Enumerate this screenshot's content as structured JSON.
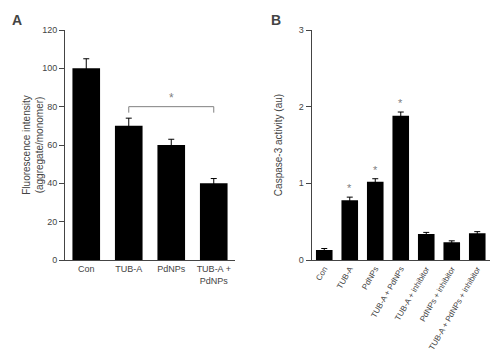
{
  "chart_data": [
    {
      "type": "bar",
      "title": "A",
      "categories": [
        "Con",
        "TUB-A",
        "PdNPs",
        "TUB-A +\nPdNPs"
      ],
      "values": [
        100,
        70,
        60,
        40
      ],
      "errors": [
        5,
        4,
        3,
        2.5
      ],
      "ylabel": "Fluorescence intensity\n(aggregate/monomer)",
      "ylim": [
        0,
        120
      ],
      "yticks": [
        0,
        20,
        40,
        60,
        80,
        100,
        120
      ],
      "color": "#000000",
      "grid": false,
      "annotations": [
        {
          "text": "*",
          "from": "TUB-A",
          "to": "TUB-A +\nPdNPs",
          "y": 80,
          "color": "gray"
        }
      ]
    },
    {
      "type": "bar",
      "title": "B",
      "categories": [
        "Con",
        "TUB-A",
        "PdNPs",
        "TUB-A + PdNPs",
        "TUB-A + inhibitor",
        "PdNPs + inhibitor",
        "TUB-A + PdNPs + inhibitor"
      ],
      "values": [
        0.13,
        0.78,
        1.02,
        1.88,
        0.34,
        0.23,
        0.35
      ],
      "errors": [
        0.02,
        0.04,
        0.04,
        0.05,
        0.02,
        0.02,
        0.02
      ],
      "ylabel": "Caspase-3 activity (au)",
      "ylim": [
        0,
        3
      ],
      "yticks": [
        0,
        1,
        2,
        3
      ],
      "color": "#000000",
      "grid": false,
      "annotations": [
        {
          "text": "*",
          "category": "TUB-A",
          "color": "gray"
        },
        {
          "text": "*",
          "category": "PdNPs",
          "color": "gray"
        },
        {
          "text": "*",
          "category": "TUB-A + PdNPs",
          "color": "gray"
        }
      ]
    }
  ]
}
